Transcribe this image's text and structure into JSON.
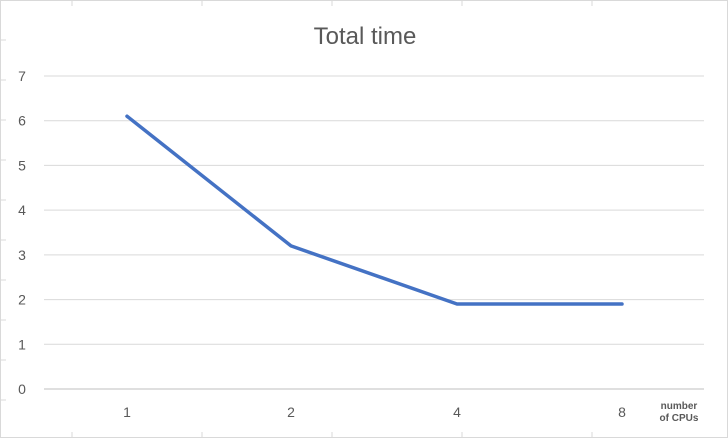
{
  "chart_data": {
    "type": "line",
    "title": "Total time",
    "xlabel": "number of CPUs",
    "xlabel_lines": [
      "number",
      "of CPUs"
    ],
    "ylabel": "",
    "categories": [
      "1",
      "2",
      "4",
      "8"
    ],
    "series": [
      {
        "values": [
          6.1,
          3.2,
          1.9,
          1.9
        ]
      }
    ],
    "ylim": [
      0,
      7
    ],
    "yticks": [
      "0",
      "1",
      "2",
      "3",
      "4",
      "5",
      "6",
      "7"
    ],
    "grid": true,
    "legend": "none",
    "colors": {
      "line": "#4472C4",
      "grid": "#D9D9D9",
      "axis": "#BFBFBF",
      "frame": "#D9D9D9",
      "tick_text": "#595959",
      "title_text": "#595959",
      "xlabel_text": "#595959"
    }
  }
}
